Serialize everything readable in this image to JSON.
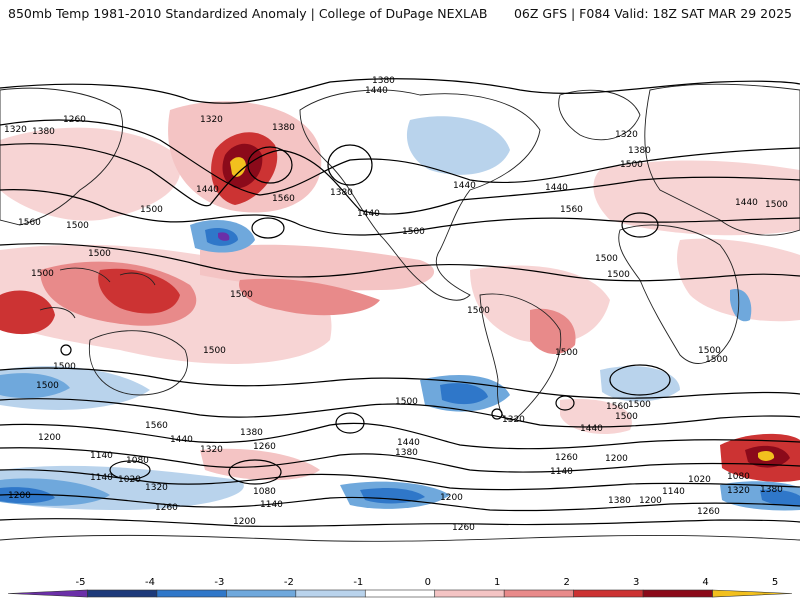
{
  "header": {
    "left_title": "850mb Temp 1981-2010 Standardized Anomaly | College of DuPage NEXLAB",
    "right_title": "06Z GFS | F084 Valid: 18Z SAT MAR 29 2025"
  },
  "colorbar": {
    "ticks": [
      "-5",
      "-4",
      "-3",
      "-2",
      "-1",
      "0",
      "1",
      "2",
      "3",
      "4",
      "5"
    ],
    "colors": [
      "#6b2fa8",
      "#1d3a7a",
      "#2f77c9",
      "#6fa8dc",
      "#b9d3ec",
      "#ffffff",
      "#f4c4c4",
      "#e88a8a",
      "#cc3333",
      "#8b0a1a",
      "#f2c01e"
    ]
  },
  "contour_labels": [
    "1380",
    "1440",
    "1260",
    "1320",
    "1380",
    "1320",
    "1380",
    "1440",
    "1560",
    "1380",
    "1440",
    "1440",
    "1560",
    "1500",
    "1560",
    "1500",
    "1500",
    "1500",
    "1500",
    "1440",
    "1500",
    "1320",
    "1380",
    "1500",
    "1500",
    "1440",
    "1500",
    "1500",
    "1500",
    "1500",
    "1500",
    "1500",
    "1500",
    "1500",
    "1500",
    "1500",
    "1500",
    "1320",
    "1440",
    "1560",
    "1380",
    "1440",
    "1380",
    "1560",
    "1440",
    "1500",
    "1320",
    "1260",
    "1200",
    "1140",
    "1080",
    "1140",
    "1020",
    "1080",
    "1200",
    "1320",
    "1260",
    "1140",
    "1200",
    "1380",
    "1260",
    "1140",
    "1200",
    "1020",
    "1080",
    "1140",
    "1320",
    "1380",
    "1200",
    "1260",
    "1200",
    "1260"
  ]
}
